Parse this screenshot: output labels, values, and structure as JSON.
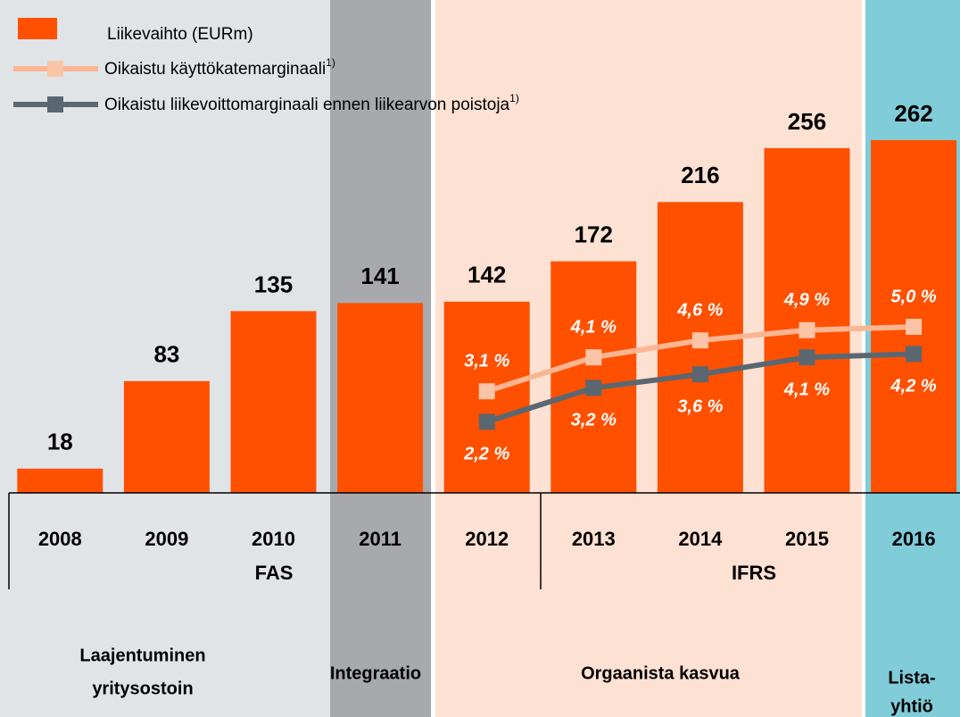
{
  "chart_data": {
    "type": "bar",
    "categories": [
      "2008",
      "2009",
      "2010",
      "2011",
      "2012",
      "2013",
      "2014",
      "2015",
      "2016"
    ],
    "series": [
      {
        "name": "Liikevaihto (EURm)",
        "type": "bar",
        "color": "#ff5000",
        "values": [
          18,
          83,
          135,
          141,
          142,
          172,
          216,
          256,
          262
        ]
      },
      {
        "name": "Oikaistu käyttökatemarginaali",
        "superscript": "1)",
        "type": "line",
        "axis": "y2",
        "color": "#fbb592",
        "values": [
          null,
          null,
          null,
          null,
          3.1,
          4.1,
          4.6,
          4.9,
          5.0
        ],
        "value_labels": [
          null,
          null,
          null,
          null,
          "3,1 %",
          "4,1 %",
          "4,6 %",
          "4,9 %",
          "5,0 %"
        ]
      },
      {
        "name": "Oikaistu liikevoittomarginaali ennen liikearvon poistoja",
        "superscript": "1)",
        "type": "line",
        "axis": "y2",
        "color": "#5b6770",
        "values": [
          null,
          null,
          null,
          null,
          2.2,
          3.2,
          3.6,
          4.1,
          4.2
        ],
        "value_labels": [
          null,
          null,
          null,
          null,
          "2,2 %",
          "3,2 %",
          "3,6 %",
          "4,1 %",
          "4,2 %"
        ]
      }
    ],
    "groups": [
      {
        "label": "FAS"
      },
      {
        "label": "IFRS"
      }
    ],
    "phases": [
      {
        "lines": [
          "Laajentuminen",
          "yritysostoin"
        ],
        "color": "#e1e4e7"
      },
      {
        "lines": [
          "Integraatio"
        ],
        "color": "#a7a9ac"
      },
      {
        "lines": [
          "Orgaanista kasvua"
        ],
        "color": "#fde1d3"
      },
      {
        "lines": [
          "Lista-",
          "yhtiö"
        ],
        "color": "#80ccd8"
      }
    ]
  }
}
